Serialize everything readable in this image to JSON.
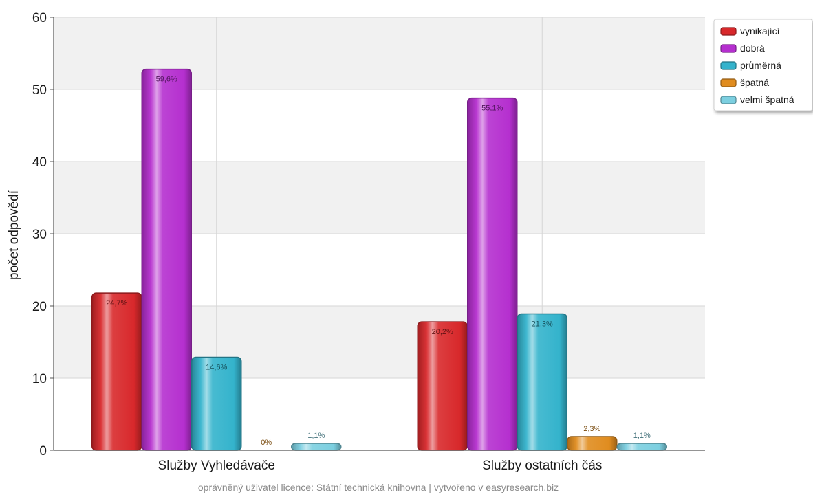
{
  "chart_data": {
    "type": "bar",
    "ylabel": "počet odpovědí",
    "xlabel": "",
    "ylim": [
      0,
      60
    ],
    "yticks": [
      0,
      10,
      20,
      30,
      40,
      50,
      60
    ],
    "categories": [
      "Služby Vyhledávače",
      "Služby ostatních čás"
    ],
    "series": [
      {
        "name": "vynikající",
        "color": "#d8282b",
        "values": [
          21.8,
          17.8
        ],
        "labels": [
          "24,7%",
          "20,2%"
        ]
      },
      {
        "name": "dobrá",
        "color": "#b52fcf",
        "values": [
          52.8,
          48.8
        ],
        "labels": [
          "59,6%",
          "55,1%"
        ]
      },
      {
        "name": "průměrná",
        "color": "#34b3cc",
        "values": [
          12.9,
          18.9
        ],
        "labels": [
          "14,6%",
          "21,3%"
        ]
      },
      {
        "name": "špatná",
        "color": "#e08c1f",
        "values": [
          0,
          1.9
        ],
        "labels": [
          "0%",
          "2,3%"
        ]
      },
      {
        "name": "velmi špatná",
        "color": "#7ccfe0",
        "values": [
          0.95,
          0.95
        ],
        "labels": [
          "1,1%",
          "1,1%"
        ]
      }
    ],
    "grid": true,
    "legend": "top-right"
  },
  "footer": "oprávněný uživatel licence: Státní technická knihovna | vytvořeno v easyresearch.biz"
}
